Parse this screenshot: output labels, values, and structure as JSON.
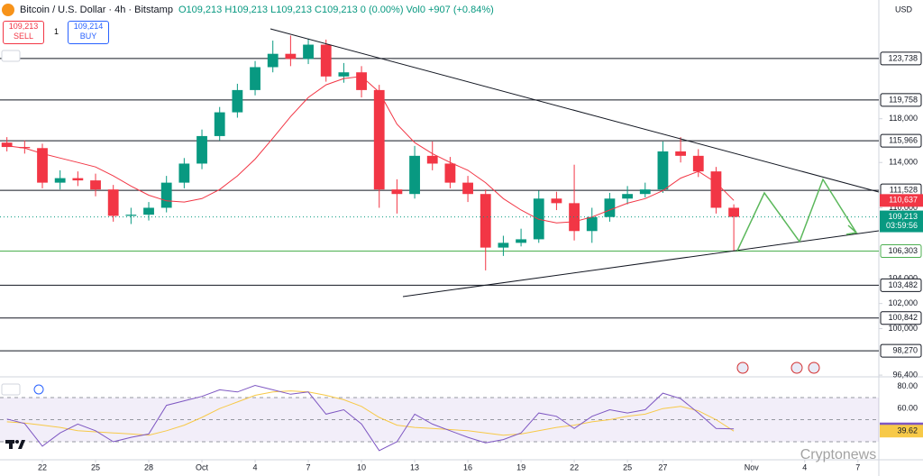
{
  "chart_data": {
    "type": "candlestick",
    "title": "Bitcoin / U.S. Dollar · 4h · Bitstamp",
    "ohlc_text": "O109,213 H109,213 L109,213 C109,213 0 (0.00%) Vol0 +907 (+0.84%)",
    "currency": "USD",
    "watermark": "Cryptonews",
    "sell": {
      "price": "109,213",
      "label": "SELL"
    },
    "spread": "1",
    "buy": {
      "price": "109,214",
      "label": "BUY"
    },
    "x": [
      -2,
      -1,
      0,
      1,
      2,
      3,
      4,
      5,
      6,
      7,
      8,
      9,
      10,
      11,
      12,
      13,
      14,
      15,
      16,
      17,
      18,
      19,
      20,
      21,
      22,
      23,
      24,
      25,
      26,
      27,
      28,
      29,
      30,
      31,
      32,
      33,
      34,
      35,
      36,
      37,
      38,
      39
    ],
    "open": [
      115800,
      115400,
      115300,
      112200,
      112600,
      112400,
      111600,
      109300,
      109400,
      110000,
      112200,
      113900,
      116400,
      118600,
      120700,
      122900,
      124200,
      123700,
      125100,
      122000,
      122400,
      120700,
      111600,
      111200,
      114600,
      113900,
      112200,
      111200,
      106600,
      107000,
      107300,
      110800,
      110400,
      108000,
      109200,
      110800,
      111200,
      111600,
      115000,
      114600,
      113200,
      110000
    ],
    "high": [
      116300,
      116000,
      115700,
      113300,
      113200,
      113000,
      112000,
      110000,
      110500,
      112800,
      114400,
      117000,
      119100,
      121300,
      123500,
      125500,
      126000,
      125700,
      125600,
      123300,
      123000,
      121200,
      112500,
      115500,
      115900,
      114500,
      112800,
      111600,
      107600,
      108200,
      111500,
      111400,
      113800,
      110000,
      111300,
      111900,
      112200,
      115900,
      116300,
      115200,
      113600,
      110300
    ],
    "low": [
      115000,
      114800,
      111700,
      111600,
      111900,
      111000,
      108800,
      108600,
      108900,
      109600,
      111700,
      113400,
      116000,
      118100,
      120200,
      122400,
      123000,
      123200,
      121500,
      121400,
      120000,
      110000,
      109500,
      110800,
      113300,
      111700,
      110500,
      104700,
      105900,
      106700,
      107000,
      109800,
      107200,
      107000,
      108800,
      110300,
      110900,
      111300,
      114000,
      112700,
      109500,
      106300
    ],
    "close": [
      115400,
      115300,
      112200,
      112600,
      112400,
      111600,
      109300,
      109400,
      110000,
      112200,
      113900,
      116400,
      118600,
      120700,
      122900,
      124200,
      123700,
      125100,
      122000,
      122400,
      120700,
      111600,
      111200,
      114600,
      113900,
      112200,
      111200,
      106600,
      107000,
      107300,
      110800,
      110400,
      108000,
      109200,
      110800,
      111200,
      111600,
      115000,
      114600,
      113200,
      110000,
      109213
    ],
    "up_color": "#089981",
    "down_color": "#f23645",
    "ma": {
      "color": "#f23645",
      "values": [
        115500,
        115300,
        114800,
        114400,
        114000,
        113600,
        112800,
        111900,
        111100,
        110600,
        110500,
        110800,
        111600,
        112800,
        114300,
        116200,
        118200,
        120000,
        121200,
        121800,
        122000,
        120500,
        117500,
        115800,
        114800,
        114000,
        113300,
        112200,
        110800,
        109800,
        109000,
        108700,
        108800,
        109200,
        109800,
        110400,
        110800,
        111500,
        112600,
        113200,
        112200,
        110637
      ]
    },
    "price_labels": [
      {
        "value": 110637,
        "label": "110,637",
        "color": "#f23645"
      },
      {
        "value": 109213,
        "label": "109,213",
        "sub": "03:59:56",
        "color": "#089981"
      }
    ],
    "levels": [
      {
        "value": 123738,
        "label": "123,738"
      },
      {
        "value": 119758,
        "label": "119,758"
      },
      {
        "value": 115966,
        "label": "115,966"
      },
      {
        "value": 111528,
        "label": "111,528"
      },
      {
        "value": 103482,
        "label": "103,482"
      },
      {
        "value": 100842,
        "label": "100,842"
      },
      {
        "value": 98270,
        "label": "98,270"
      }
    ],
    "level_color": "#131722",
    "support": {
      "value": 106303,
      "label": "106,303",
      "color": "#4caf50"
    },
    "log": true,
    "ylim": [
      96270,
      127030
    ],
    "yticks": [
      {
        "value": 118000,
        "label": "118,000"
      },
      {
        "value": 114000,
        "label": "114,000"
      },
      {
        "value": 110000,
        "label": "110,000"
      },
      {
        "value": 104000,
        "label": "104,000"
      },
      {
        "value": 102000,
        "label": "102,000"
      },
      {
        "value": 100000,
        "label": "100,000"
      },
      {
        "value": 96400,
        "label": "96,400"
      }
    ],
    "xlim": [
      -2.39,
      47.18
    ],
    "xticks": [
      {
        "value": 0,
        "label": "22"
      },
      {
        "value": 3,
        "label": "25"
      },
      {
        "value": 6,
        "label": "28"
      },
      {
        "value": 9,
        "label": "Oct"
      },
      {
        "value": 12,
        "label": "4"
      },
      {
        "value": 15,
        "label": "7"
      },
      {
        "value": 18,
        "label": "10"
      },
      {
        "value": 21,
        "label": "13"
      },
      {
        "value": 24,
        "label": "16"
      },
      {
        "value": 27,
        "label": "19"
      },
      {
        "value": 30,
        "label": "22"
      },
      {
        "value": 33,
        "label": "25"
      },
      {
        "value": 35,
        "label": "27"
      },
      {
        "value": 40,
        "label": "Nov"
      },
      {
        "value": 43,
        "label": "4"
      },
      {
        "value": 46,
        "label": "7"
      }
    ],
    "rsi": {
      "color": "#7e57c2",
      "ma_color": "#f7c948",
      "ylim": [
        13.7,
        87.1
      ],
      "bands": [
        70,
        50,
        30
      ],
      "yticks": [
        {
          "value": 80,
          "label": "80.00"
        },
        {
          "value": 60,
          "label": "60.00"
        }
      ],
      "values": [
        50.6,
        46.5,
        26,
        38,
        46,
        40,
        30,
        34,
        37,
        63,
        67,
        71,
        77,
        75,
        81,
        77,
        73,
        75,
        55,
        59,
        46,
        22,
        30,
        55,
        46,
        40,
        34,
        29,
        32,
        38,
        56,
        53,
        42,
        53,
        59,
        56,
        59,
        74,
        69,
        56,
        42,
        41.65
      ],
      "ma_values": [
        48,
        47,
        45,
        43,
        40,
        39,
        38,
        37,
        36,
        40,
        45,
        52,
        60,
        66,
        72,
        75,
        76,
        75,
        72,
        68,
        62,
        52,
        45,
        43,
        42,
        41,
        40,
        38,
        36,
        37,
        40,
        43,
        45,
        48,
        50,
        53,
        55,
        60,
        62,
        58,
        50,
        39.62
      ]
    }
  }
}
